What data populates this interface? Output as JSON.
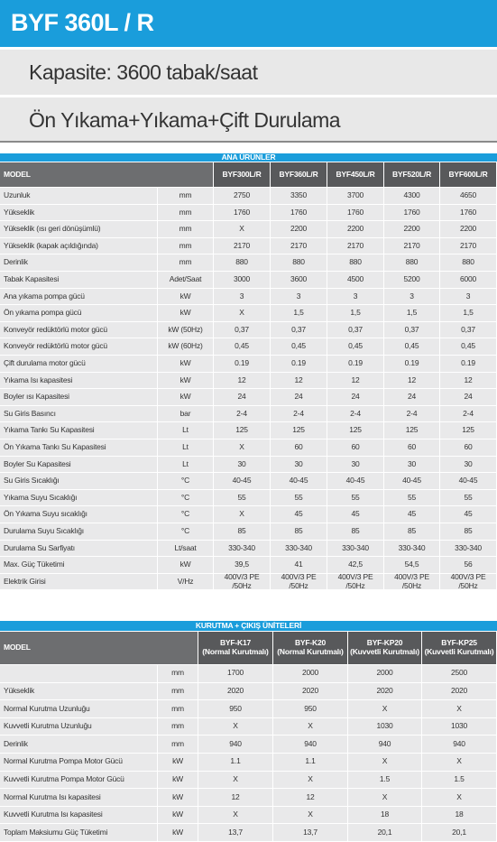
{
  "header": {
    "title": "BYF 360L / R"
  },
  "capacity": "Kapasite: 3600 tabak/saat",
  "process": "Ön Yıkama+Yıkama+Çift Durulama",
  "table1": {
    "title": "ANA ÜRÜNLER",
    "model": "MODEL",
    "columns": [
      "BYF300L/R",
      "BYF360L/R",
      "BYF450L/R",
      "BYF520L/R",
      "BYF600L/R"
    ],
    "rows": [
      [
        "Uzunluk",
        "mm",
        "2750",
        "3350",
        "3700",
        "4300",
        "4650"
      ],
      [
        "Yükseklik",
        "mm",
        "1760",
        "1760",
        "1760",
        "1760",
        "1760"
      ],
      [
        "Yükseklik (ısı geri dönüşümlü)",
        "mm",
        "X",
        "2200",
        "2200",
        "2200",
        "2200"
      ],
      [
        "Yükseklik (kapak açıldığında)",
        "mm",
        "2170",
        "2170",
        "2170",
        "2170",
        "2170"
      ],
      [
        "Derinlik",
        "mm",
        "880",
        "880",
        "880",
        "880",
        "880"
      ],
      [
        "Tabak Kapasitesi",
        "Adet/Saat",
        "3000",
        "3600",
        "4500",
        "5200",
        "6000"
      ],
      [
        "Ana yıkama pompa gücü",
        "kW",
        "3",
        "3",
        "3",
        "3",
        "3"
      ],
      [
        "Ön yıkama pompa gücü",
        "kW",
        "X",
        "1,5",
        "1,5",
        "1,5",
        "1,5"
      ],
      [
        "Konveyör redüktörlü motor gücü",
        "kW (50Hz)",
        "0,37",
        "0,37",
        "0,37",
        "0,37",
        "0,37"
      ],
      [
        "Konveyör redüktörlü motor gücü",
        "kW (60Hz)",
        "0,45",
        "0,45",
        "0,45",
        "0,45",
        "0,45"
      ],
      [
        "Çift durulama motor gücü",
        "kW",
        "0.19",
        "0.19",
        "0.19",
        "0.19",
        "0.19"
      ],
      [
        "Yıkama Isı kapasitesi",
        "kW",
        "12",
        "12",
        "12",
        "12",
        "12"
      ],
      [
        "Boyler ısı Kapasitesi",
        "kW",
        "24",
        "24",
        "24",
        "24",
        "24"
      ],
      [
        "Su Giris Basıncı",
        "bar",
        "2-4",
        "2-4",
        "2-4",
        "2-4",
        "2-4"
      ],
      [
        "Yıkama Tankı Su Kapasitesi",
        "Lt",
        "125",
        "125",
        "125",
        "125",
        "125"
      ],
      [
        "Ön Yıkama Tankı Su Kapasitesi",
        "Lt",
        "X",
        "60",
        "60",
        "60",
        "60"
      ],
      [
        "Boyler Su Kapasitesi",
        "Lt",
        "30",
        "30",
        "30",
        "30",
        "30"
      ],
      [
        "Su Giris Sıcaklığı",
        "°C",
        "40-45",
        "40-45",
        "40-45",
        "40-45",
        "40-45"
      ],
      [
        "Yıkama Suyu Sıcaklığı",
        "°C",
        "55",
        "55",
        "55",
        "55",
        "55"
      ],
      [
        "Ön Yıkama Suyu sıcaklığı",
        "°C",
        "X",
        "45",
        "45",
        "45",
        "45"
      ],
      [
        "Durulama Suyu Sıcaklığı",
        "°C",
        "85",
        "85",
        "85",
        "85",
        "85"
      ],
      [
        "Durulama Su Sarfiyatı",
        "Lt/saat",
        "330-340",
        "330-340",
        "330-340",
        "330-340",
        "330-340"
      ],
      [
        "Max. Güç Tüketimi",
        "kW",
        "39,5",
        "41",
        "42,5",
        "54,5",
        "56"
      ],
      [
        "Elektrik Girisi",
        "V/Hz",
        "400V/3 PE /50Hz",
        "400V/3 PE /50Hz",
        "400V/3 PE /50Hz",
        "400V/3 PE /50Hz",
        "400V/3 PE /50Hz"
      ]
    ]
  },
  "table2": {
    "title": "KURUTMA + ÇIKIŞ ÜNİTELERİ",
    "model": "MODEL",
    "columns": [
      {
        "name": "BYF-K17",
        "sub": "(Normal Kurutmalı)"
      },
      {
        "name": "BYF-K20",
        "sub": "(Normal Kurutmalı)"
      },
      {
        "name": "BYF-KP20",
        "sub": "(Kuvvetli Kurutmalı)"
      },
      {
        "name": "BYF-KP25",
        "sub": "(Kuvvetli Kurutmalı)"
      }
    ],
    "rows": [
      [
        null,
        "mm",
        "1700",
        "2000",
        "2000",
        "2500"
      ],
      [
        "Yükseklik",
        "mm",
        "2020",
        "2020",
        "2020",
        "2020"
      ],
      [
        "Normal Kurutma Uzunluğu",
        "mm",
        "950",
        "950",
        "X",
        "X"
      ],
      [
        "Kuvvetli Kurutma Uzunluğu",
        "mm",
        "X",
        "X",
        "1030",
        "1030"
      ],
      [
        "Derinlik",
        "mm",
        "940",
        "940",
        "940",
        "940"
      ],
      [
        "Normal Kurutma Pompa Motor Gücü",
        "kW",
        "1.1",
        "1.1",
        "X",
        "X"
      ],
      [
        "Kuvvetli Kurutma Pompa Motor Gücü",
        "kW",
        "X",
        "X",
        "1.5",
        "1.5"
      ],
      [
        "Normal Kurutma Isı kapasitesi",
        "kW",
        "12",
        "12",
        "X",
        "X"
      ],
      [
        "Kuvvetli Kurutma Isı kapasitesi",
        "kW",
        "X",
        "X",
        "18",
        "18"
      ],
      [
        "Toplam Maksiumu Güç Tüketimi",
        "kW",
        "13,7",
        "13,7",
        "20,1",
        "20,1"
      ]
    ]
  }
}
